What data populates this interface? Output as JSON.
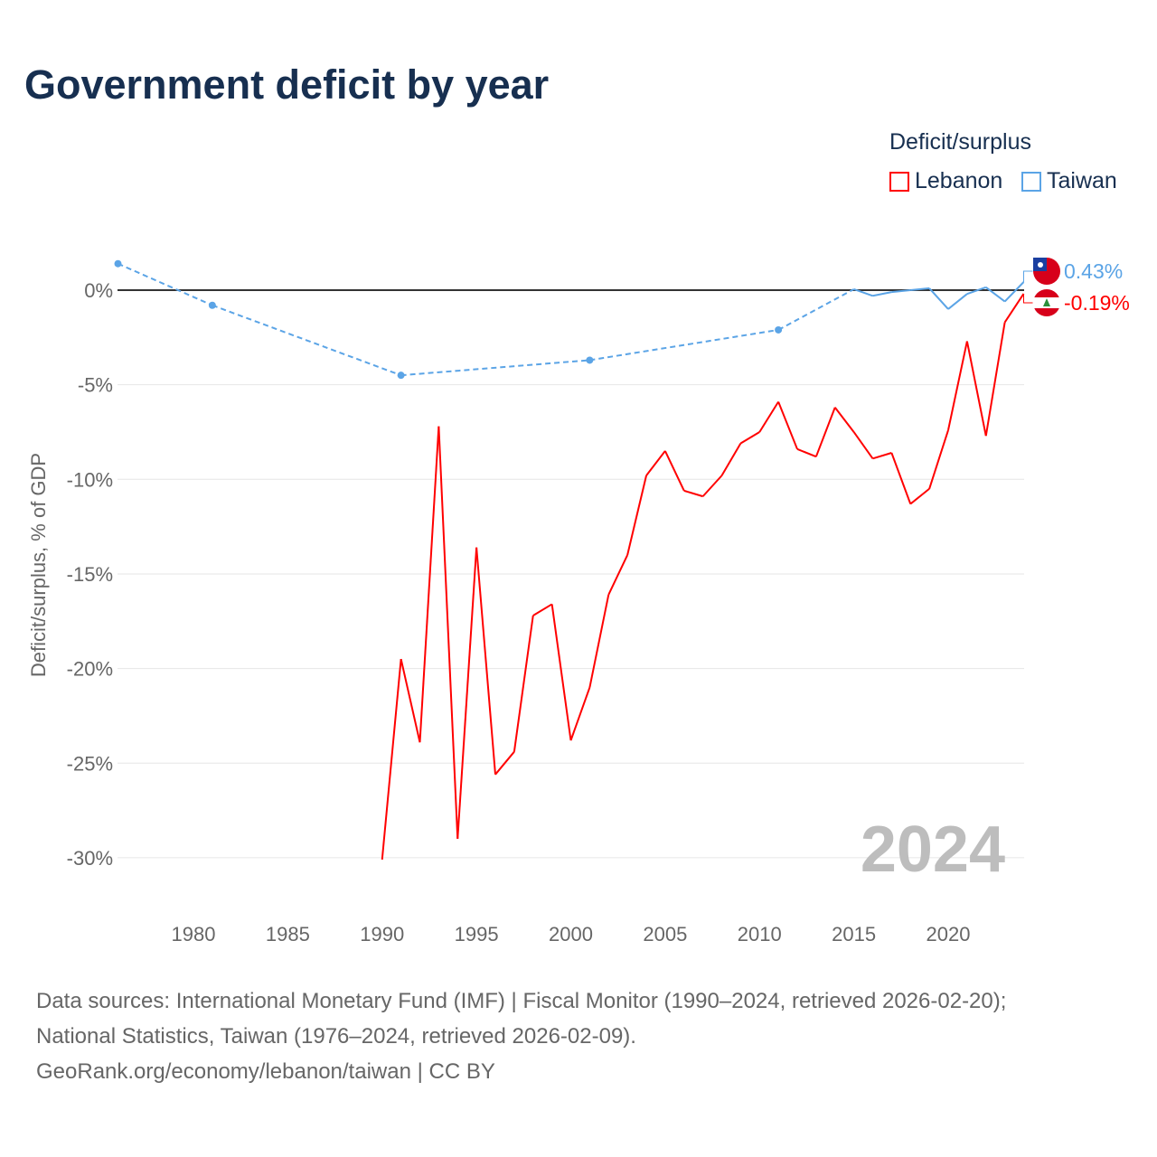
{
  "chart_data": {
    "type": "line",
    "title": "Government deficit by year",
    "ylabel": "Deficit/surplus, % of GDP",
    "xlabel": "",
    "ylim": [
      -30,
      2
    ],
    "xlim": [
      1976,
      2024
    ],
    "yticks": [
      0,
      -5,
      -10,
      -15,
      -20,
      -25,
      -30
    ],
    "ytick_labels": [
      "0%",
      "-5%",
      "-10%",
      "-15%",
      "-20%",
      "-25%",
      "-30%"
    ],
    "xticks": [
      1980,
      1985,
      1990,
      1995,
      2000,
      2005,
      2010,
      2015,
      2020
    ],
    "xtick_labels": [
      "1980",
      "1985",
      "1990",
      "1995",
      "2000",
      "2005",
      "2010",
      "2015",
      "2020"
    ],
    "legend_title": "Deficit/surplus",
    "legend_position": "top-right",
    "year_watermark": "2024",
    "series": [
      {
        "name": "Lebanon",
        "color": "#ff0000",
        "end_label": "-0.19%",
        "x": [
          1990,
          1991,
          1992,
          1993,
          1994,
          1995,
          1996,
          1997,
          1998,
          1999,
          2000,
          2001,
          2002,
          2003,
          2004,
          2005,
          2006,
          2007,
          2008,
          2009,
          2010,
          2011,
          2012,
          2013,
          2014,
          2015,
          2016,
          2017,
          2018,
          2019,
          2020,
          2021,
          2022,
          2023,
          2024
        ],
        "values": [
          -30.1,
          -19.5,
          -23.9,
          -7.2,
          -29.0,
          -13.6,
          -25.6,
          -24.4,
          -17.2,
          -16.6,
          -23.8,
          -21.0,
          -16.1,
          -14.0,
          -9.8,
          -8.5,
          -10.6,
          -10.9,
          -9.8,
          -8.1,
          -7.5,
          -5.9,
          -8.4,
          -8.8,
          -6.2,
          -7.5,
          -8.9,
          -8.6,
          -11.3,
          -10.5,
          -7.4,
          -2.7,
          -7.7,
          -1.7,
          -0.19
        ]
      },
      {
        "name": "Taiwan",
        "color": "#5ba4e6",
        "end_label": "0.43%",
        "x": [
          1976,
          1981,
          1991,
          2001,
          2011,
          2015,
          2016,
          2017,
          2018,
          2019,
          2020,
          2021,
          2022,
          2023,
          2024
        ],
        "values": [
          1.4,
          -0.8,
          -4.5,
          -3.7,
          -2.1,
          0.05,
          -0.3,
          -0.1,
          0.0,
          0.1,
          -1.0,
          -0.2,
          0.15,
          -0.6,
          0.43
        ]
      }
    ]
  },
  "footer": {
    "line1": "Data sources: International Monetary Fund (IMF) | Fiscal Monitor (1990–2024, retrieved 2026-02-20);",
    "line2": "National Statistics, Taiwan (1976–2024, retrieved 2026-02-09).",
    "line3": "GeoRank.org/economy/lebanon/taiwan | CC BY"
  }
}
